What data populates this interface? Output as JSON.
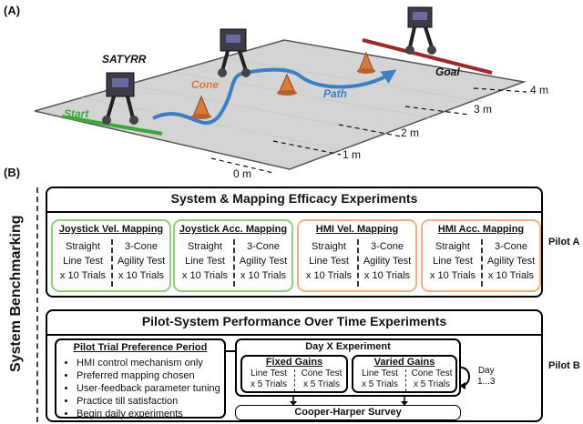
{
  "part_a": {
    "label": "(A)",
    "robot_name": "SATYRR",
    "start": "Start",
    "cone": "Cone",
    "path": "Path",
    "goal": "Goal",
    "distances": [
      "0 m",
      "1 m",
      "2 m",
      "3 m",
      "4 m"
    ],
    "colors": {
      "start_line": "#3aa83a",
      "goal_line": "#9a2a2a",
      "path": "#3d7fc4",
      "cone": "#d9793a",
      "floor": "#d9d9d9"
    }
  },
  "part_b": {
    "label": "(B)",
    "side_title": "System Benchmarking",
    "pilot_a_label": "Pilot A",
    "pilot_b_label": "Pilot B",
    "efficacy": {
      "title": "System & Mapping Efficacy Experiments",
      "mappings": [
        {
          "title": "Joystick Vel. Mapping",
          "left": [
            "Straight",
            "Line Test",
            "x 10 Trials"
          ],
          "right": [
            "3-Cone",
            "Agility Test",
            "x 10 Trials"
          ]
        },
        {
          "title": "Joystick Acc. Mapping",
          "left": [
            "Straight",
            "Line Test",
            "x 10 Trials"
          ],
          "right": [
            "3-Cone",
            "Agility Test",
            "x 10 Trials"
          ]
        },
        {
          "title": "HMI Vel. Mapping",
          "left": [
            "Straight",
            "Line Test",
            "x 10 Trials"
          ],
          "right": [
            "3-Cone",
            "Agility Test",
            "x 10 Trials"
          ]
        },
        {
          "title": "HMI Acc. Mapping",
          "left": [
            "Straight",
            "Line Test",
            "x 10 Trials"
          ],
          "right": [
            "3-Cone",
            "Agility Test",
            "x 10 Trials"
          ]
        }
      ]
    },
    "performance": {
      "title": "Pilot-System Performance Over Time Experiments",
      "preference_title": "Pilot Trial Preference Period",
      "preference_items": [
        "HMI control mechanism only",
        "Preferred mapping chosen",
        "User-feedback parameter tuning",
        "Practice till satisfaction",
        "Begin daily experiments"
      ],
      "dayx_title": "Day X Experiment",
      "fixed": {
        "title": "Fixed Gains",
        "left": [
          "Line Test",
          "x 5 Trials"
        ],
        "right": [
          "Cone Test",
          "x 5 Trials"
        ]
      },
      "varied": {
        "title": "Varied Gains",
        "left": [
          "Line Test",
          "x 5 Trials"
        ],
        "right": [
          "Cone Test",
          "x 5 Trials"
        ]
      },
      "day_loop": [
        "Day",
        "1...3"
      ],
      "survey": "Cooper-Harper Survey"
    }
  }
}
